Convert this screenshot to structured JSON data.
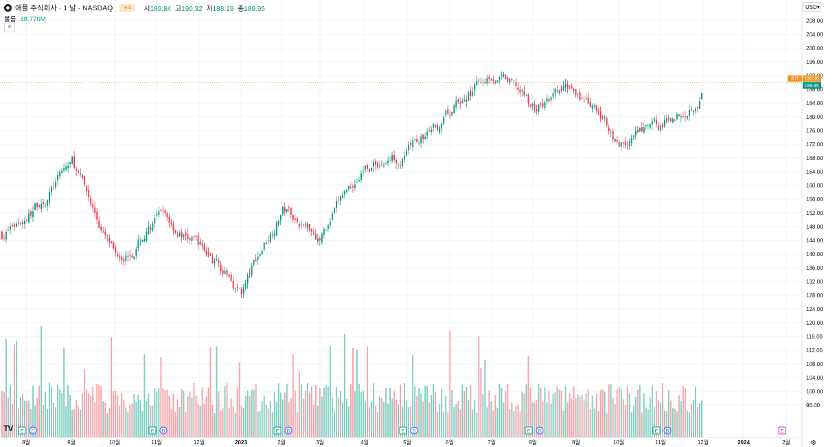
{
  "header": {
    "symbol_line": "애플 주식회사 · 1 날 · NASDAQ",
    "flag_icon": "flag-icon",
    "ohlc": {
      "o_label": "시",
      "o": "189.84",
      "h_label": "고",
      "h": "190.32",
      "l_label": "저",
      "l": "188.19",
      "c_label": "종",
      "c": "189.95"
    },
    "volume_label": "볼륨",
    "volume_value": "48.776M",
    "collapse_glyph": "^",
    "currency": "USD"
  },
  "colors": {
    "up": "#089981",
    "down": "#f23645",
    "up_volume": "#7dcfc1",
    "down_volume": "#f5a3a8",
    "grid": "#f0f3fa",
    "price_line": "#e3a13a",
    "prev_close_badge": "#f7931a",
    "last_badge": "#089981"
  },
  "chart_data": {
    "type": "candlestick",
    "y_axis_ticks": [
      "208.00",
      "204.00",
      "200.00",
      "196.00",
      "192.00",
      "188.00",
      "184.00",
      "180.00",
      "176.00",
      "172.00",
      "168.00",
      "164.00",
      "160.00",
      "156.00",
      "152.00",
      "148.00",
      "144.00",
      "140.00",
      "136.00",
      "132.00",
      "128.00",
      "124.00",
      "120.00",
      "116.00",
      "112.00",
      "108.00",
      "104.00",
      "100.00",
      "96.00"
    ],
    "ylim": [
      92,
      210
    ],
    "x_axis_ticks": [
      "8월",
      "9월",
      "10월",
      "11월",
      "12월",
      "2023",
      "2월",
      "3월",
      "4월",
      "5월",
      "6월",
      "7월",
      "8월",
      "9월",
      "10월",
      "11월",
      "12월",
      "2024",
      "2월"
    ],
    "close_anchors": [
      {
        "month": "2022-08",
        "value": 152
      },
      {
        "month": "2022-09",
        "value": 166
      },
      {
        "month": "2022-10",
        "value": 138
      },
      {
        "month": "2022-11",
        "value": 150
      },
      {
        "month": "2022-12",
        "value": 142
      },
      {
        "month": "2023-01",
        "value": 129
      },
      {
        "month": "2023-02",
        "value": 154
      },
      {
        "month": "2023-03",
        "value": 146
      },
      {
        "month": "2023-04",
        "value": 166
      },
      {
        "month": "2023-05",
        "value": 170
      },
      {
        "month": "2023-06",
        "value": 180
      },
      {
        "month": "2023-07",
        "value": 194
      },
      {
        "month": "2023-08",
        "value": 182
      },
      {
        "month": "2023-09",
        "value": 188
      },
      {
        "month": "2023-10",
        "value": 172
      },
      {
        "month": "2023-11",
        "value": 176
      },
      {
        "month": "2023-12",
        "value": 189.95
      }
    ],
    "prev_close": {
      "label": "프리",
      "value": "190.06"
    },
    "last_price": "189.95",
    "event_markers": [
      {
        "month": "2022-08",
        "items": [
          "E",
          "D"
        ]
      },
      {
        "month": "2022-11",
        "items": [
          "E",
          "D"
        ]
      },
      {
        "month": "2023-02",
        "items": [
          "E",
          "D"
        ]
      },
      {
        "month": "2023-05",
        "items": [
          "E",
          "D"
        ]
      },
      {
        "month": "2023-08",
        "items": [
          "E",
          "D"
        ]
      },
      {
        "month": "2023-11",
        "items": [
          "E",
          "D"
        ]
      },
      {
        "month": "2024-02",
        "items": [
          "E"
        ]
      }
    ]
  },
  "footer": {
    "brand_logo": "TV",
    "settings_icon": "gear-icon"
  }
}
